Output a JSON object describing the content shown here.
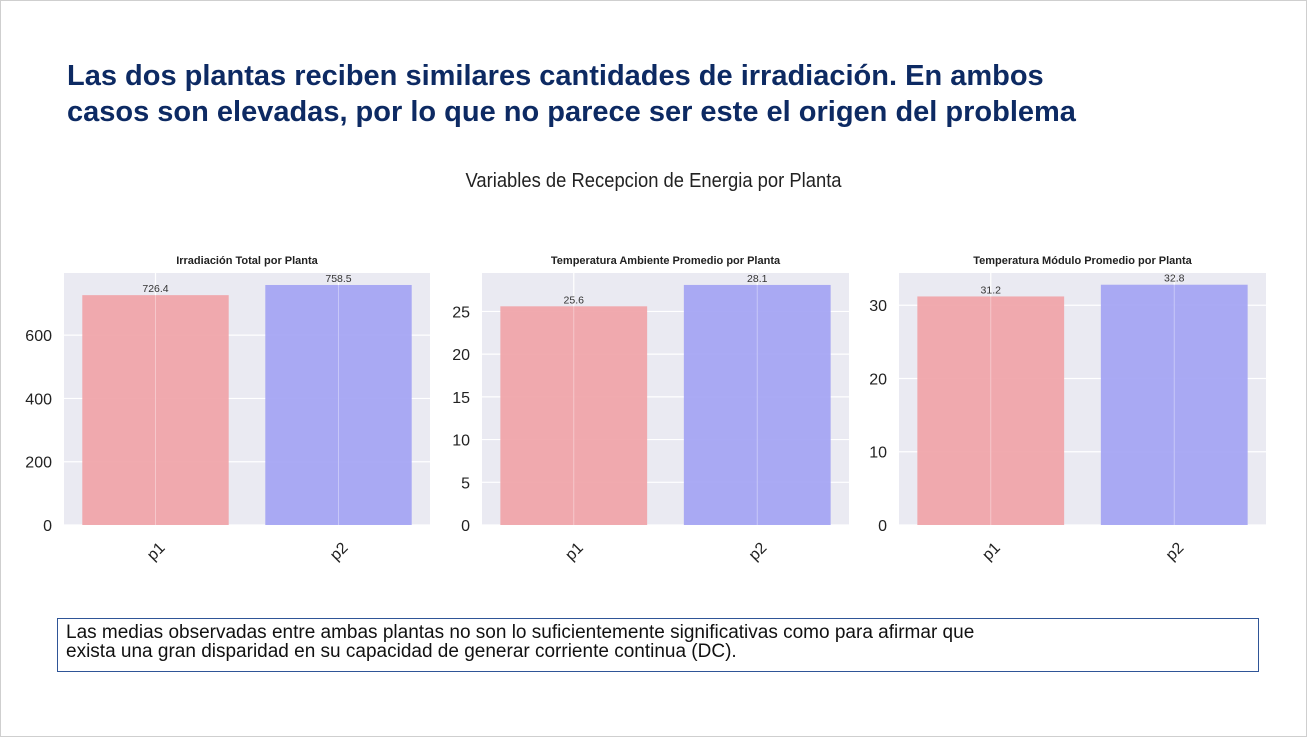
{
  "slide": {
    "headline_lines": [
      "Las dos plantas reciben similares cantidades de irradiación. En ambos",
      "casos son elevadas, por lo que no parece ser este el origen del problema"
    ],
    "figure_title": "Variables de Recepcion de Energia por Planta",
    "note_lines": [
      "Las medias observadas entre ambas plantas no son lo suficientemente significativas como para afirmar que",
      "exista una gran disparidad en su capacidad de generar corriente continua (DC)."
    ]
  },
  "colors": {
    "p1": "#f0a3a8",
    "p2": "#a3a3f3",
    "plot_bg": "#eaeaf2",
    "grid": "#ffffff",
    "headline": "#0d2a63",
    "note_border": "#2f5597"
  },
  "chart_data": [
    {
      "type": "bar",
      "title": "Irradiación Total por Planta",
      "categories": [
        "p1",
        "p2"
      ],
      "values": [
        726.4,
        758.5
      ],
      "value_labels": [
        "726.4",
        "758.5"
      ],
      "yticks": [
        0,
        200,
        400,
        600
      ],
      "ylim": [
        0,
        796.4
      ],
      "grid": true
    },
    {
      "type": "bar",
      "title": "Temperatura Ambiente Promedio por Planta",
      "categories": [
        "p1",
        "p2"
      ],
      "values": [
        25.6,
        28.1
      ],
      "value_labels": [
        "25.6",
        "28.1"
      ],
      "yticks": [
        0,
        5,
        10,
        15,
        20,
        25
      ],
      "ylim": [
        0,
        29.5
      ],
      "grid": true
    },
    {
      "type": "bar",
      "title": "Temperatura Módulo Promedio por Planta",
      "categories": [
        "p1",
        "p2"
      ],
      "values": [
        31.2,
        32.8
      ],
      "value_labels": [
        "31.2",
        "32.8"
      ],
      "yticks": [
        0,
        10,
        20,
        30
      ],
      "ylim": [
        0,
        34.4
      ],
      "grid": true
    }
  ]
}
